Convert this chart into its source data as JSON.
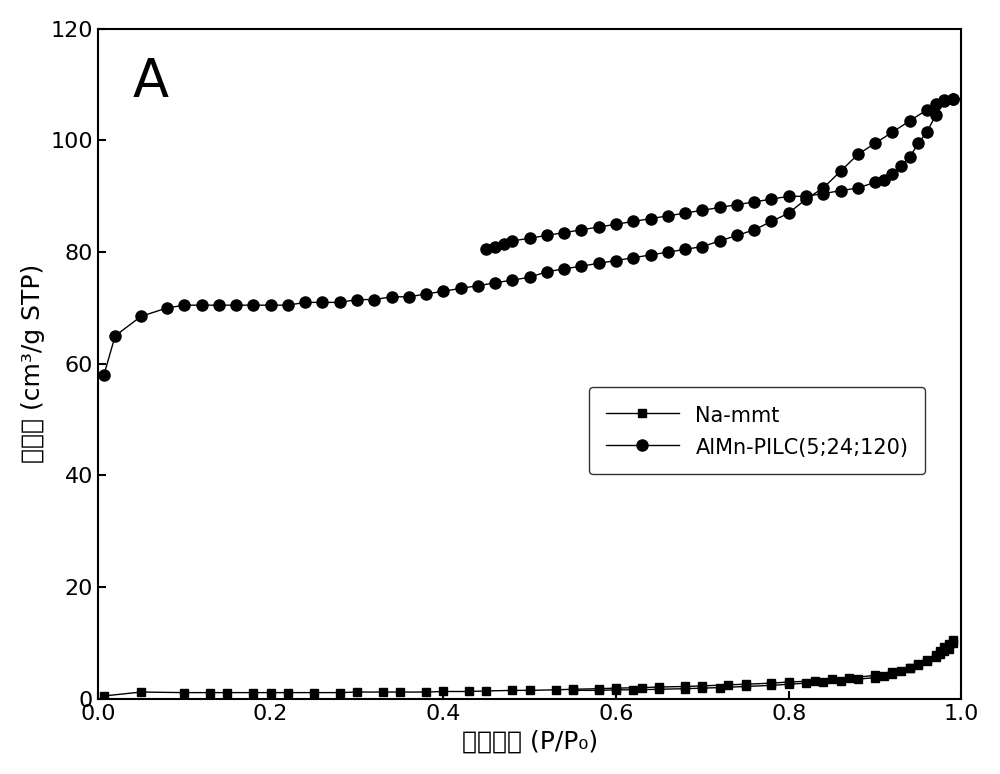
{
  "title": "A",
  "xlabel_cn": "相对压力",
  "xlabel_en": " (P/P₀)",
  "ylabel_cn": "吸附量",
  "ylabel_en": " (cm³/g STP)",
  "xlim": [
    0,
    1.0
  ],
  "ylim": [
    0,
    120
  ],
  "xticks": [
    0.0,
    0.2,
    0.4,
    0.6,
    0.8,
    1.0
  ],
  "yticks": [
    0,
    20,
    40,
    60,
    80,
    100,
    120
  ],
  "legend": [
    "Na-mmt",
    "AlMn-PILC(5;24;120)"
  ],
  "na_mmt_ads_x": [
    0.007,
    0.05,
    0.1,
    0.13,
    0.15,
    0.18,
    0.2,
    0.22,
    0.25,
    0.28,
    0.3,
    0.33,
    0.35,
    0.38,
    0.4,
    0.43,
    0.45,
    0.48,
    0.5,
    0.53,
    0.55,
    0.58,
    0.6,
    0.63,
    0.65,
    0.68,
    0.7,
    0.73,
    0.75,
    0.78,
    0.8,
    0.83,
    0.85,
    0.87,
    0.9,
    0.92,
    0.94,
    0.95,
    0.96,
    0.97,
    0.975,
    0.98,
    0.985,
    0.99
  ],
  "na_mmt_ads_y": [
    0.5,
    1.2,
    1.1,
    1.1,
    1.1,
    1.1,
    1.1,
    1.1,
    1.1,
    1.1,
    1.2,
    1.2,
    1.2,
    1.2,
    1.3,
    1.3,
    1.4,
    1.5,
    1.5,
    1.6,
    1.7,
    1.8,
    1.9,
    2.0,
    2.1,
    2.2,
    2.3,
    2.5,
    2.6,
    2.8,
    3.0,
    3.2,
    3.5,
    3.7,
    4.2,
    4.8,
    5.5,
    6.0,
    6.8,
    7.5,
    8.0,
    8.5,
    9.0,
    10.0
  ],
  "na_mmt_des_x": [
    0.99,
    0.985,
    0.98,
    0.975,
    0.97,
    0.96,
    0.95,
    0.94,
    0.93,
    0.92,
    0.91,
    0.9,
    0.88,
    0.86,
    0.84,
    0.82,
    0.8,
    0.78,
    0.75,
    0.72,
    0.7,
    0.68,
    0.65,
    0.62,
    0.6,
    0.58,
    0.55
  ],
  "na_mmt_des_y": [
    10.5,
    9.8,
    9.2,
    8.5,
    7.8,
    7.0,
    6.2,
    5.5,
    5.0,
    4.5,
    4.0,
    3.8,
    3.5,
    3.2,
    3.0,
    2.8,
    2.6,
    2.4,
    2.2,
    2.0,
    1.9,
    1.8,
    1.7,
    1.6,
    1.6,
    1.5,
    1.5
  ],
  "almn_ads_x": [
    0.007,
    0.02,
    0.05,
    0.08,
    0.1,
    0.12,
    0.14,
    0.16,
    0.18,
    0.2,
    0.22,
    0.24,
    0.26,
    0.28,
    0.3,
    0.32,
    0.34,
    0.36,
    0.38,
    0.4,
    0.42,
    0.44,
    0.46,
    0.48,
    0.5,
    0.52,
    0.54,
    0.56,
    0.58,
    0.6,
    0.62,
    0.64,
    0.66,
    0.68,
    0.7,
    0.72,
    0.74,
    0.76,
    0.78,
    0.8,
    0.82,
    0.84,
    0.86,
    0.88,
    0.9,
    0.92,
    0.94,
    0.96,
    0.97,
    0.98,
    0.99
  ],
  "almn_ads_y": [
    58.0,
    65.0,
    68.5,
    70.0,
    70.5,
    70.5,
    70.5,
    70.5,
    70.5,
    70.5,
    70.5,
    71.0,
    71.0,
    71.0,
    71.5,
    71.5,
    72.0,
    72.0,
    72.5,
    73.0,
    73.5,
    74.0,
    74.5,
    75.0,
    75.5,
    76.5,
    77.0,
    77.5,
    78.0,
    78.5,
    79.0,
    79.5,
    80.0,
    80.5,
    81.0,
    82.0,
    83.0,
    84.0,
    85.5,
    87.0,
    89.5,
    91.5,
    94.5,
    97.5,
    99.5,
    101.5,
    103.5,
    105.5,
    106.5,
    107.2,
    107.5
  ],
  "almn_des_x": [
    0.99,
    0.98,
    0.97,
    0.96,
    0.95,
    0.94,
    0.93,
    0.92,
    0.91,
    0.9,
    0.88,
    0.86,
    0.84,
    0.82,
    0.8,
    0.78,
    0.76,
    0.74,
    0.72,
    0.7,
    0.68,
    0.66,
    0.64,
    0.62,
    0.6,
    0.58,
    0.56,
    0.54,
    0.52,
    0.5,
    0.48,
    0.47,
    0.46,
    0.45
  ],
  "almn_des_y": [
    107.5,
    107.0,
    104.5,
    101.5,
    99.5,
    97.0,
    95.5,
    94.0,
    93.0,
    92.5,
    91.5,
    91.0,
    90.5,
    90.0,
    90.0,
    89.5,
    89.0,
    88.5,
    88.0,
    87.5,
    87.0,
    86.5,
    86.0,
    85.5,
    85.0,
    84.5,
    84.0,
    83.5,
    83.0,
    82.5,
    82.0,
    81.5,
    81.0,
    80.5
  ]
}
